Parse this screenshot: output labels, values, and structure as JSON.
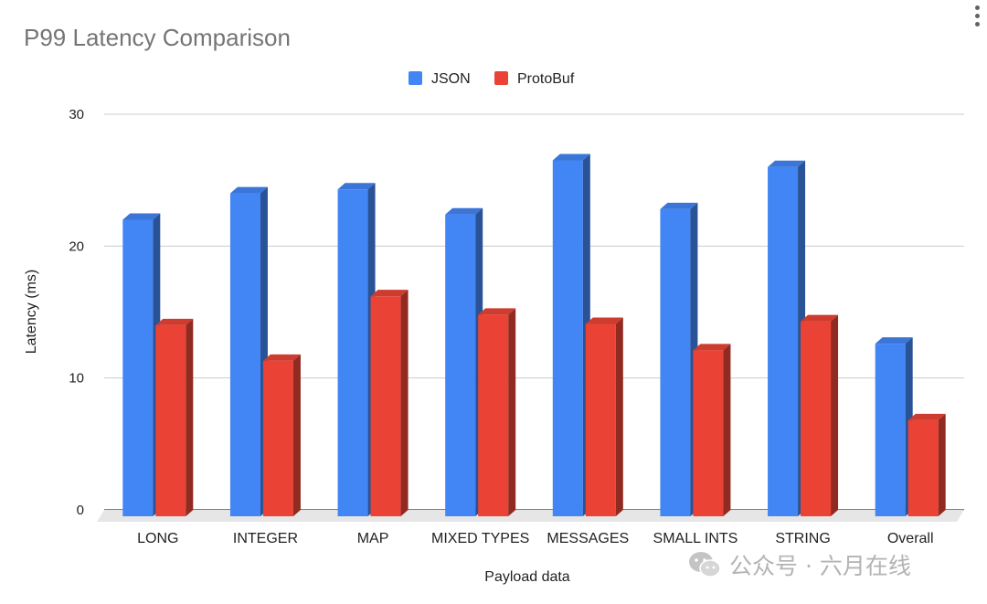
{
  "chart_data": {
    "type": "bar",
    "title": "P99 Latency Comparison",
    "xlabel": "Payload data",
    "ylabel": "Latency (ms)",
    "ylim": [
      0,
      30
    ],
    "yticks": [
      "0",
      "10",
      "20",
      "30"
    ],
    "grid": true,
    "legend_position": "top",
    "style": "3d",
    "categories": [
      "LONG",
      "INTEGER",
      "MAP",
      "MIXED TYPES",
      "MESSAGES",
      "SMALL INTS",
      "STRING",
      "Overall"
    ],
    "series": [
      {
        "name": "JSON",
        "color": "#4285F4",
        "values": [
          22,
          24,
          24.3,
          22.4,
          26.5,
          22.8,
          26,
          12.6
        ]
      },
      {
        "name": "ProtoBuf",
        "color": "#EA4335",
        "values": [
          14,
          11.3,
          16.2,
          14.8,
          14.1,
          12.1,
          14.3,
          6.8
        ]
      }
    ]
  },
  "watermark": {
    "text": "公众号 · 六月在线",
    "logo_icon": "wechat-icon"
  },
  "menu_icon": "more-vert-icon"
}
